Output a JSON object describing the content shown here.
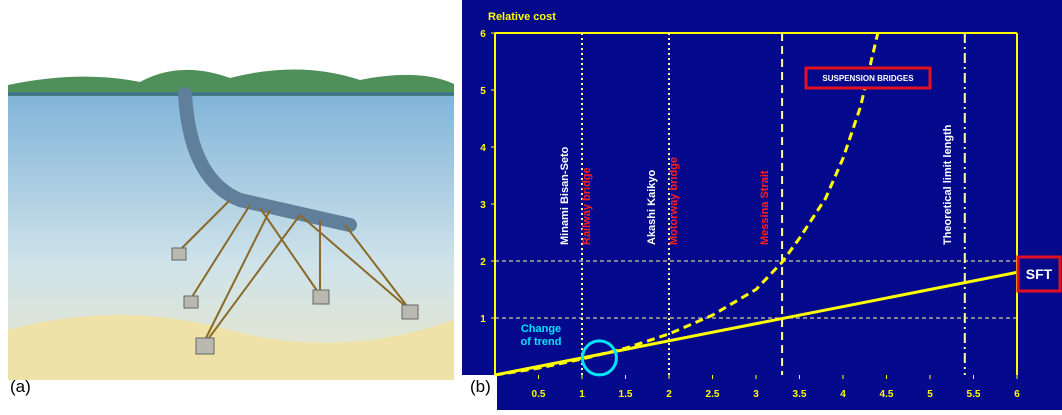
{
  "panel_labels": [
    "(a)",
    "(b)"
  ],
  "chart_data": {
    "type": "line",
    "ylabel": "Relative cost",
    "xlim": [
      0,
      6
    ],
    "ylim": [
      0,
      6
    ],
    "xticks": [
      0.5,
      1,
      1.5,
      2,
      2.5,
      3,
      3.5,
      4,
      4.5,
      5,
      5.5,
      6
    ],
    "yticks": [
      1,
      2,
      3,
      4,
      5,
      6
    ],
    "hlines": [
      1,
      2
    ],
    "series": [
      {
        "name": "SUSPENSION BRIDGES",
        "color": "#ffff00",
        "style": "dashed",
        "x": [
          0,
          0.5,
          1,
          1.5,
          2,
          2.5,
          3,
          3.3,
          3.5,
          3.8,
          4,
          4.2,
          4.4
        ],
        "values": [
          0,
          0.12,
          0.28,
          0.47,
          0.72,
          1.05,
          1.5,
          1.98,
          2.4,
          3.1,
          3.8,
          4.7,
          6
        ]
      },
      {
        "name": "SFT",
        "color": "#ffff00",
        "style": "solid",
        "x": [
          0,
          6
        ],
        "values": [
          0,
          1.8
        ]
      }
    ],
    "reference_lines": [
      {
        "x": 1,
        "style": "dotted",
        "labels": [
          {
            "text": "Minami Bisan-Seto",
            "color": "#ffffff"
          },
          {
            "text": "Railway bridge",
            "color": "#ff2020"
          }
        ]
      },
      {
        "x": 2,
        "style": "dotted",
        "labels": [
          {
            "text": "Akashi Kaikyo",
            "color": "#ffffff"
          },
          {
            "text": "Motorway bridge",
            "color": "#ff2020"
          }
        ]
      },
      {
        "x": 3.3,
        "style": "dashed",
        "labels": [
          {
            "text": "Messina Strait",
            "color": "#ff2020"
          }
        ]
      },
      {
        "x": 5.4,
        "style": "dashdot",
        "labels": [
          {
            "text": "Theoretical limit length",
            "color": "#ffffff"
          }
        ]
      }
    ],
    "annotation": {
      "text": [
        "Change",
        "of trend"
      ],
      "x": 1.2,
      "y": 0.3,
      "color": "#00e5ff"
    }
  }
}
